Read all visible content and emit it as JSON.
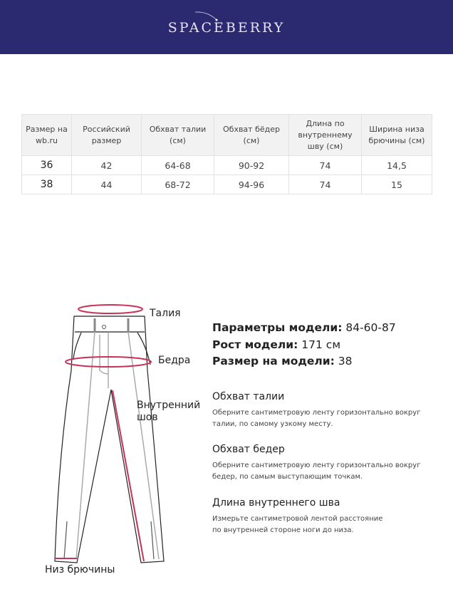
{
  "brand": {
    "logo": "SPACEBERRY",
    "color": "#2b2a70"
  },
  "table": {
    "headers": [
      "Размер на wb.ru",
      "Российский размер",
      "Обхват талии (см)",
      "Обхват бёдер (см)",
      "Длина по внутреннему шву (см)",
      "Ширина низа брючины (см)"
    ],
    "rows": [
      [
        "36",
        "42",
        "64-68",
        "90-92",
        "74",
        "14,5"
      ],
      [
        "38",
        "44",
        "68-72",
        "94-96",
        "74",
        "15"
      ]
    ]
  },
  "diagram": {
    "labels": {
      "waist": "Талия",
      "hips": "Бедра",
      "inseam": "Внутренний шов",
      "hem": "Низ брючины"
    },
    "accent": "#c8325a"
  },
  "model": [
    {
      "label": "Параметры модели:",
      "value": "84-60-87"
    },
    {
      "label": "Рост модели:",
      "value": "171 см"
    },
    {
      "label": "Размер на модели:",
      "value": "38"
    }
  ],
  "sections": [
    {
      "title": "Обхват талии",
      "text": "Оберните сантиметровую ленту горизонтально вокруг\nталии, по самому узкому месту."
    },
    {
      "title": "Обхват бедер",
      "text": "Оберните сантиметровую ленту горизонтально вокруг\nбедер, по самым выступающим точкам."
    },
    {
      "title": "Длина внутреннего шва",
      "text": "Измерьте сантиметровой лентой расстояние\nпо внутренней стороне ноги до низа."
    }
  ]
}
